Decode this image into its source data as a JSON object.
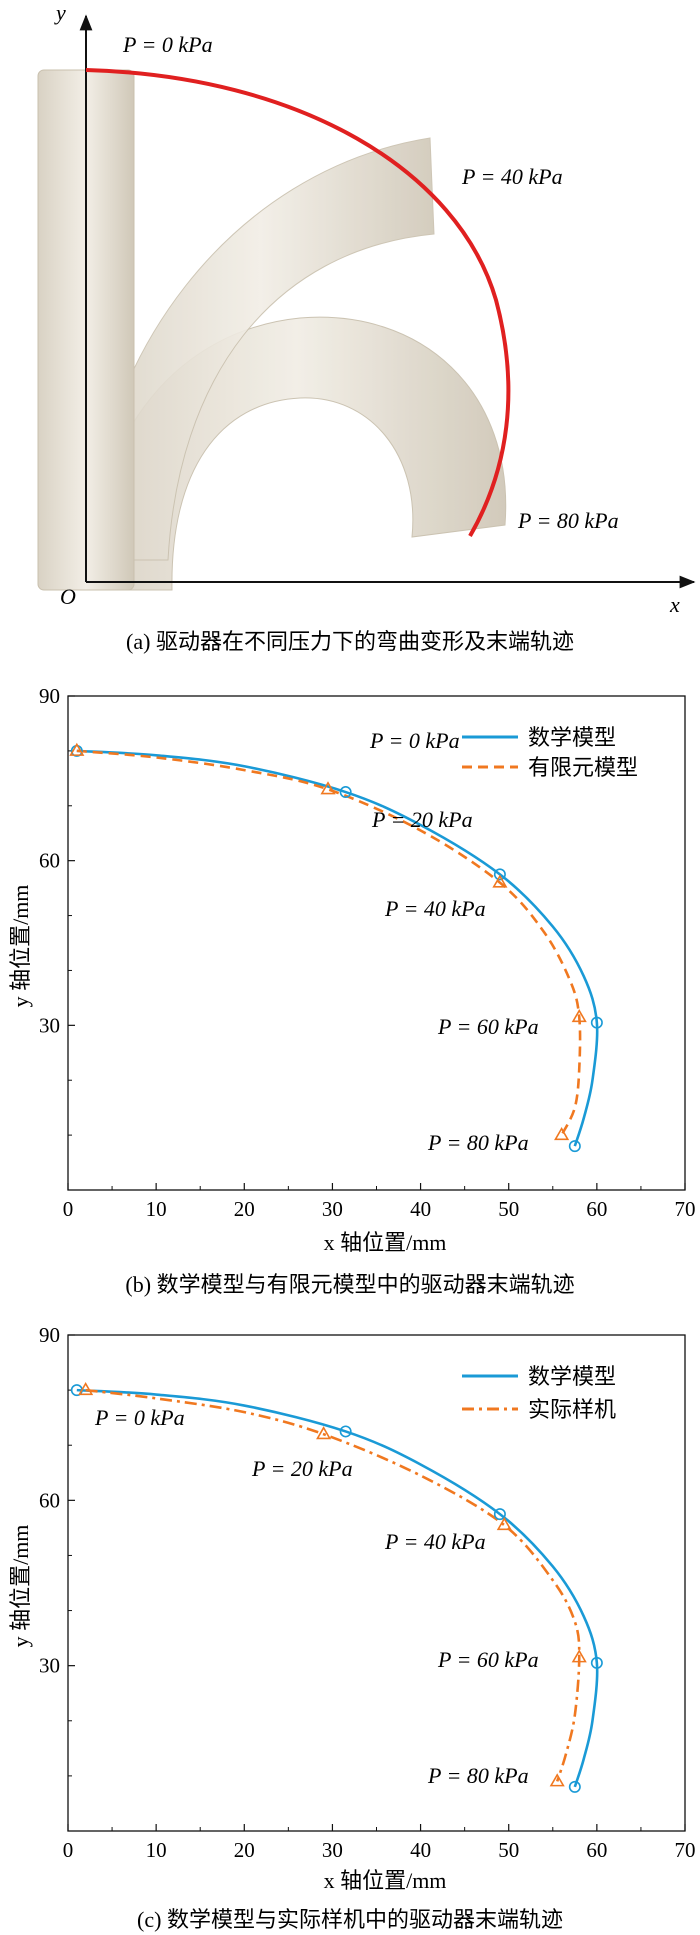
{
  "panel_a": {
    "x_axis_label": "x",
    "y_axis_label": "y",
    "origin_label": "O",
    "pressure_labels": [
      "P = 0 kPa",
      "P = 40 kPa",
      "P = 80 kPa"
    ],
    "caption": "(a) 驱动器在不同压力下的弯曲变形及末端轨迹",
    "trajectory_color": "#e02020"
  },
  "chart_data": [
    {
      "type": "line",
      "caption": "(b) 数学模型与有限元模型中的驱动器末端轨迹",
      "xlabel": "x 轴位置/mm",
      "ylabel": "y 轴位置/mm",
      "xlim": [
        0,
        70
      ],
      "ylim": [
        0,
        90
      ],
      "xticks": [
        0,
        10,
        20,
        30,
        40,
        50,
        60,
        70
      ],
      "yticks": [
        30,
        60,
        90
      ],
      "grid": false,
      "legend_position": "top-right",
      "pressure_labels": [
        "P = 0 kPa",
        "P = 20 kPa",
        "P = 40 kPa",
        "P = 60 kPa",
        "P = 80 kPa"
      ],
      "series": [
        {
          "name": "数学模型",
          "color": "#1a9ad6",
          "dash": "solid",
          "marker": "circle",
          "x": [
            1,
            10,
            20,
            31.5,
            40,
            49,
            55,
            58.5,
            60,
            59.5,
            58.5,
            57.5
          ],
          "y": [
            80,
            79.2,
            77.2,
            72.5,
            66.5,
            57.5,
            48,
            39,
            30.5,
            20,
            13,
            8
          ],
          "marker_x": [
            1,
            31.5,
            49,
            60,
            57.5
          ],
          "marker_y": [
            80,
            72.5,
            57.5,
            30.5,
            8
          ]
        },
        {
          "name": "有限元模型",
          "color": "#f07820",
          "dash": "dashed",
          "marker": "triangle",
          "x": [
            1,
            10,
            20,
            29.5,
            40,
            49,
            54,
            57,
            58,
            58,
            57.5,
            56
          ],
          "y": [
            80,
            78.8,
            76.5,
            73,
            65.5,
            56,
            47,
            38,
            31.5,
            22,
            15,
            10
          ],
          "marker_x": [
            1,
            29.5,
            49,
            58,
            56
          ],
          "marker_y": [
            80,
            73,
            56,
            31.5,
            10
          ]
        }
      ]
    },
    {
      "type": "line",
      "caption": "(c) 数学模型与实际样机中的驱动器末端轨迹",
      "xlabel": "x 轴位置/mm",
      "ylabel": "y 轴位置/mm",
      "xlim": [
        0,
        70
      ],
      "ylim": [
        0,
        90
      ],
      "xticks": [
        0,
        10,
        20,
        30,
        40,
        50,
        60,
        70
      ],
      "yticks": [
        30,
        60,
        90
      ],
      "grid": false,
      "legend_position": "top-right",
      "pressure_labels": [
        "P = 0 kPa",
        "P = 20 kPa",
        "P = 40 kPa",
        "P = 60 kPa",
        "P = 80 kPa"
      ],
      "series": [
        {
          "name": "数学模型",
          "color": "#1a9ad6",
          "dash": "solid",
          "marker": "circle",
          "x": [
            1,
            10,
            20,
            31.5,
            40,
            49,
            55,
            58.5,
            60,
            59.5,
            58.5,
            57.5
          ],
          "y": [
            80,
            79.2,
            77.2,
            72.5,
            66.5,
            57.5,
            48,
            39,
            30.5,
            20,
            13,
            8
          ],
          "marker_x": [
            1,
            31.5,
            49,
            60,
            57.5
          ],
          "marker_y": [
            80,
            72.5,
            57.5,
            30.5,
            8
          ]
        },
        {
          "name": "实际样机",
          "color": "#f07820",
          "dash": "dashdot",
          "marker": "triangle",
          "x": [
            2,
            10,
            20,
            29,
            40,
            49.5,
            55,
            57.5,
            58,
            57.5,
            56.5,
            55.5
          ],
          "y": [
            80,
            78.5,
            76,
            72,
            64.5,
            55.5,
            45.5,
            38,
            31.5,
            21,
            14,
            9
          ],
          "marker_x": [
            2,
            29,
            49.5,
            58,
            55.5
          ],
          "marker_y": [
            80,
            72,
            55.5,
            31.5,
            9
          ]
        }
      ]
    }
  ]
}
